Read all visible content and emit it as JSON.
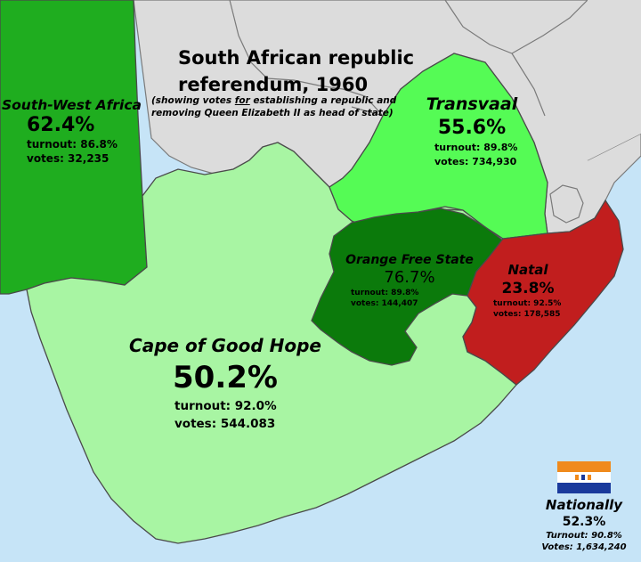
{
  "title": {
    "line1": "South African republic",
    "line2": "referendum, 1960"
  },
  "subtitle": {
    "line1_before": "(showing votes ",
    "line1_emphasis": "for",
    "line1_after": " establishing a republic and",
    "line2": "removing Queen Elizabeth II as head of state)"
  },
  "regions": {
    "south_west_africa": {
      "name": "South-West Africa",
      "percent": "62.4%",
      "turnout": "turnout: 86.8%",
      "votes": "votes: 32,235",
      "color": "#1fad1f"
    },
    "transvaal": {
      "name": "Transvaal",
      "percent": "55.6%",
      "turnout": "turnout: 89.8%",
      "votes": "votes: 734,930",
      "color": "#55fb55"
    },
    "orange_free_state": {
      "name": "Orange Free State",
      "percent": "76.7%",
      "turnout": "turnout: 89.8%",
      "votes": "votes: 144,407",
      "color": "#0b7a0b"
    },
    "natal": {
      "name": "Natal",
      "percent": "23.8%",
      "turnout": "turnout: 92.5%",
      "votes": "votes: 178,585",
      "color": "#c11e1e"
    },
    "cape": {
      "name": "Cape of Good Hope",
      "percent": "50.2%",
      "turnout": "turnout: 92.0%",
      "votes": "votes: 544.083",
      "color": "#a8f5a3"
    }
  },
  "national": {
    "label": "Nationally",
    "percent": "52.3%",
    "turnout": "Turnout: 90.8%",
    "votes": "Votes: 1,634,240"
  },
  "colors": {
    "ocean": "#c6e4f7",
    "other_land": "#dcdcdc",
    "border": "#7a7a7a",
    "flag_orange": "#f08a1c",
    "flag_white": "#ffffff",
    "flag_blue": "#1a3a9c"
  }
}
